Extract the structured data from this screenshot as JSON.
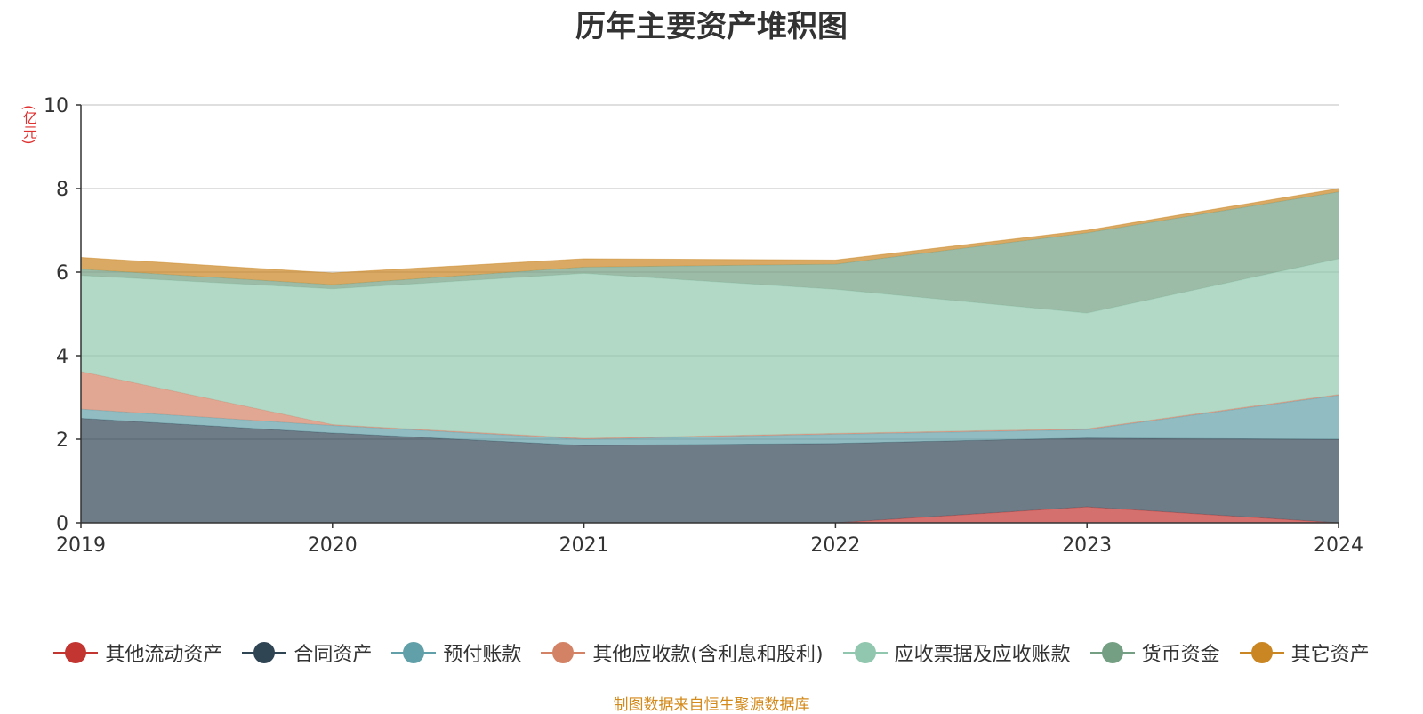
{
  "chart_data": {
    "type": "area",
    "stacked": true,
    "title": "历年主要资产堆积图",
    "ylabel": "(亿元)",
    "xlabel": "",
    "x": [
      "2019",
      "2020",
      "2021",
      "2022",
      "2023",
      "2024"
    ],
    "ylim": [
      0,
      10
    ],
    "yticks": [
      "0",
      "2",
      "4",
      "6",
      "8",
      "10"
    ],
    "grid": true,
    "legend_position": "bottom",
    "series": [
      {
        "name": "其他流动资产",
        "color": "#c23531",
        "values": [
          0,
          0,
          0,
          0,
          0.38,
          0
        ]
      },
      {
        "name": "合同资产",
        "color": "#2f4554",
        "values": [
          2.5,
          2.15,
          1.85,
          1.9,
          1.65,
          2.0
        ]
      },
      {
        "name": "预付账款",
        "color": "#61a0a8",
        "values": [
          0.22,
          0.18,
          0.15,
          0.22,
          0.2,
          1.05
        ]
      },
      {
        "name": "其他应收款(含利息和股利)",
        "color": "#d48265",
        "values": [
          0.9,
          0.02,
          0.02,
          0.02,
          0.02,
          0.02
        ]
      },
      {
        "name": "应收票据及应收账款",
        "color": "#91c7ae",
        "values": [
          2.3,
          3.25,
          3.95,
          3.45,
          2.77,
          3.25
        ]
      },
      {
        "name": "货币资金",
        "color": "#749f83",
        "values": [
          0.15,
          0.1,
          0.15,
          0.6,
          1.92,
          1.6
        ]
      },
      {
        "name": "其它资产",
        "color": "#ca8622",
        "values": [
          0.28,
          0.28,
          0.2,
          0.1,
          0.06,
          0.08
        ]
      }
    ]
  },
  "source_note": "制图数据来自恒生聚源数据库"
}
